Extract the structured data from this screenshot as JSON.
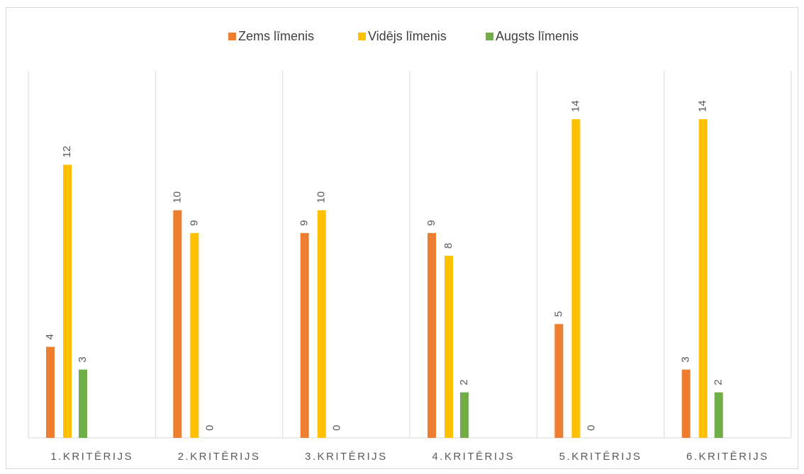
{
  "chart_data": {
    "type": "bar",
    "categories": [
      "1.KRITĒRIJS",
      "2.KRITĒRIJS",
      "3.KRITĒRIJS",
      "4.KRITĒRIJS",
      "5.KRITĒRIJS",
      "6.KRITĒRIJS"
    ],
    "series": [
      {
        "name": "Zems līmenis",
        "color": "#ed7d31",
        "values": [
          4,
          10,
          9,
          9,
          5,
          3
        ]
      },
      {
        "name": "Vidējs līmenis",
        "color": "#ffc000",
        "values": [
          12,
          9,
          10,
          8,
          14,
          14
        ]
      },
      {
        "name": "Augsts līmenis",
        "color": "#70ad47",
        "values": [
          3,
          0,
          0,
          2,
          0,
          2
        ]
      }
    ],
    "ylim": [
      0,
      16
    ],
    "legend": "top"
  }
}
